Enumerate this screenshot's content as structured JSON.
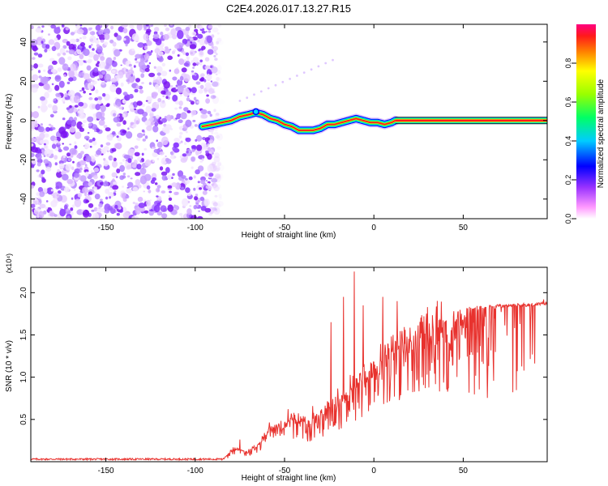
{
  "title": "C2E4.2026.017.13.27.R15",
  "chart_data": [
    {
      "type": "heatmap",
      "xlabel": "Height of straight line (km)",
      "ylabel": "Frequency (Hz)",
      "xlim": [
        -192,
        97
      ],
      "ylim": [
        -50,
        49
      ],
      "xticks": [
        -150,
        -100,
        -50,
        0,
        50
      ],
      "yticks": [
        -40,
        -20,
        0,
        20,
        40
      ],
      "colorbar": {
        "label": "Normalized spectral amplitude",
        "range": [
          0,
          1
        ],
        "ticks": [
          0.0,
          0.2,
          0.4,
          0.6,
          0.8
        ],
        "tick_labels": [
          "0.0",
          "0.2",
          "0.4",
          "0.6",
          "0.8"
        ],
        "colormap": [
          "#ffffff",
          "#ff80ff",
          "#8000ff",
          "#0000ff",
          "#00ffff",
          "#00ff00",
          "#ffff00",
          "#ff8000",
          "#ff0000",
          "#ff0080"
        ]
      },
      "noise_region_x": [
        -192,
        -92
      ],
      "ridge": {
        "x": [
          -96,
          -90,
          -85,
          -80,
          -75,
          -70,
          -66,
          -62,
          -58,
          -54,
          -50,
          -46,
          -42,
          -38,
          -34,
          -30,
          -26,
          -22,
          -18,
          -14,
          -10,
          -6,
          -2,
          2,
          6,
          10,
          12,
          20,
          40,
          60,
          80,
          96
        ],
        "y": [
          -3,
          -2,
          -1,
          0,
          2,
          3,
          4,
          3,
          1,
          0,
          -2,
          -3,
          -5,
          -5,
          -5,
          -4,
          -2,
          -2,
          -1,
          0,
          1,
          0,
          -1,
          -1,
          -2,
          -1,
          0,
          0,
          0,
          0,
          0,
          0
        ],
        "tail_amplitude": 0.97
      }
    },
    {
      "type": "line",
      "xlabel": "Height of straight line (km)",
      "ylabel": "SNR (10 * v/v)",
      "y_multiplier": "(x10⁴)",
      "xlim": [
        -192,
        97
      ],
      "ylim": [
        0,
        2.3
      ],
      "xticks": [
        -150,
        -100,
        -50,
        0,
        50
      ],
      "yticks": [
        0.5,
        1.0,
        1.5,
        2.0
      ],
      "ytick_labels": [
        "0.5",
        "1.0",
        "1.5",
        "2.0"
      ],
      "color": "#e8322e",
      "envelope": {
        "x": [
          -192,
          -100,
          -85,
          -82,
          -78,
          -72,
          -65,
          -60,
          -55,
          -50,
          -45,
          -40,
          -35,
          -30,
          -25,
          -20,
          -18,
          -15,
          -12,
          -10,
          -8,
          -5,
          0,
          5,
          10,
          15,
          20,
          25,
          30,
          40,
          50,
          55,
          60,
          70,
          80,
          90,
          97
        ],
        "y": [
          0.03,
          0.03,
          0.03,
          0.08,
          0.18,
          0.12,
          0.22,
          0.4,
          0.45,
          0.48,
          0.6,
          0.55,
          0.5,
          0.62,
          0.75,
          0.78,
          0.85,
          0.9,
          0.95,
          1.0,
          1.1,
          1.15,
          1.2,
          1.35,
          1.5,
          1.55,
          1.6,
          1.65,
          1.72,
          1.78,
          1.82,
          1.82,
          1.83,
          1.84,
          1.85,
          1.86,
          1.88
        ]
      },
      "spikes": [
        {
          "x": -11,
          "y": 2.25
        },
        {
          "x": -17,
          "y": 1.95
        },
        {
          "x": -24,
          "y": 1.65
        },
        {
          "x": -6,
          "y": 1.85
        },
        {
          "x": 5,
          "y": 1.95
        },
        {
          "x": 13,
          "y": 1.9
        },
        {
          "x": 95,
          "y": 1.92
        }
      ],
      "dropout_band_x": [
        52,
        95
      ],
      "dropout_min": 0.75
    }
  ]
}
